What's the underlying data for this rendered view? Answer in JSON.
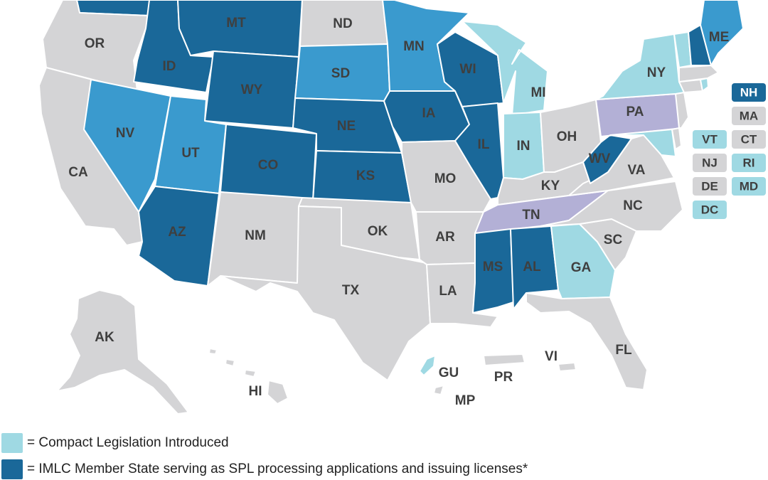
{
  "colors": {
    "member_spl": "#1a6899",
    "member": "#3a9ace",
    "introduced": "#9fd9e3",
    "pending": "#b3b0d6",
    "none": "#d4d4d6",
    "label": "#3f3f3f"
  },
  "legend": [
    {
      "status": "introduced",
      "text": "= Compact Legislation Introduced"
    },
    {
      "status": "member_spl",
      "text": "= IMLC Member State serving as SPL processing applications and issuing licenses*"
    }
  ],
  "states": {
    "WA": {
      "label": "",
      "status": "member_spl"
    },
    "OR": {
      "label": "OR",
      "status": "none"
    },
    "CA": {
      "label": "CA",
      "status": "none"
    },
    "NV": {
      "label": "NV",
      "status": "member"
    },
    "ID": {
      "label": "ID",
      "status": "member_spl"
    },
    "MT": {
      "label": "MT",
      "status": "member_spl"
    },
    "WY": {
      "label": "WY",
      "status": "member_spl"
    },
    "UT": {
      "label": "UT",
      "status": "member"
    },
    "AZ": {
      "label": "AZ",
      "status": "member_spl"
    },
    "CO": {
      "label": "CO",
      "status": "member_spl"
    },
    "NM": {
      "label": "NM",
      "status": "none"
    },
    "ND": {
      "label": "ND",
      "status": "none"
    },
    "SD": {
      "label": "SD",
      "status": "member"
    },
    "NE": {
      "label": "NE",
      "status": "member_spl"
    },
    "KS": {
      "label": "KS",
      "status": "member_spl"
    },
    "OK": {
      "label": "OK",
      "status": "none"
    },
    "TX": {
      "label": "TX",
      "status": "none"
    },
    "MN": {
      "label": "MN",
      "status": "member"
    },
    "IA": {
      "label": "IA",
      "status": "member_spl"
    },
    "MO": {
      "label": "MO",
      "status": "none"
    },
    "AR": {
      "label": "AR",
      "status": "none"
    },
    "LA": {
      "label": "LA",
      "status": "none"
    },
    "WI": {
      "label": "WI",
      "status": "member_spl"
    },
    "IL": {
      "label": "IL",
      "status": "member_spl"
    },
    "MI": {
      "label": "MI",
      "status": "introduced"
    },
    "IN": {
      "label": "IN",
      "status": "introduced"
    },
    "OH": {
      "label": "OH",
      "status": "none"
    },
    "KY": {
      "label": "KY",
      "status": "none"
    },
    "TN": {
      "label": "TN",
      "status": "pending"
    },
    "MS": {
      "label": "MS",
      "status": "member_spl"
    },
    "AL": {
      "label": "AL",
      "status": "member_spl"
    },
    "GA": {
      "label": "GA",
      "status": "introduced"
    },
    "FL": {
      "label": "FL",
      "status": "none"
    },
    "SC": {
      "label": "SC",
      "status": "none"
    },
    "NC": {
      "label": "NC",
      "status": "none"
    },
    "VA": {
      "label": "VA",
      "status": "none"
    },
    "WV": {
      "label": "WV",
      "status": "member_spl"
    },
    "PA": {
      "label": "PA",
      "status": "pending"
    },
    "NY": {
      "label": "NY",
      "status": "introduced"
    },
    "ME": {
      "label": "ME",
      "status": "member"
    },
    "NH": {
      "label": "",
      "status": "member_spl"
    },
    "VT": {
      "label": "",
      "status": "introduced"
    },
    "MA": {
      "label": "",
      "status": "none"
    },
    "CT": {
      "label": "",
      "status": "none"
    },
    "RI": {
      "label": "",
      "status": "introduced"
    },
    "NJ": {
      "label": "",
      "status": "none"
    },
    "DE": {
      "label": "",
      "status": "none"
    },
    "MD": {
      "label": "",
      "status": "introduced"
    },
    "AK": {
      "label": "AK",
      "status": "none"
    },
    "HI": {
      "label": "HI",
      "status": "none"
    }
  },
  "territories": {
    "GU": {
      "label": "GU",
      "status": "introduced"
    },
    "PR": {
      "label": "PR",
      "status": "none"
    },
    "VI": {
      "label": "VI",
      "status": "none"
    },
    "MP": {
      "label": "MP",
      "status": "none"
    }
  },
  "small_state_boxes": [
    {
      "label": "NH",
      "status": "member_spl"
    },
    {
      "label": "MA",
      "status": "none"
    },
    {
      "label": "VT",
      "status": "introduced"
    },
    {
      "label": "CT",
      "status": "none"
    },
    {
      "label": "NJ",
      "status": "none"
    },
    {
      "label": "RI",
      "status": "introduced"
    },
    {
      "label": "DE",
      "status": "none"
    },
    {
      "label": "MD",
      "status": "introduced"
    },
    {
      "label": "DC",
      "status": "introduced"
    }
  ]
}
